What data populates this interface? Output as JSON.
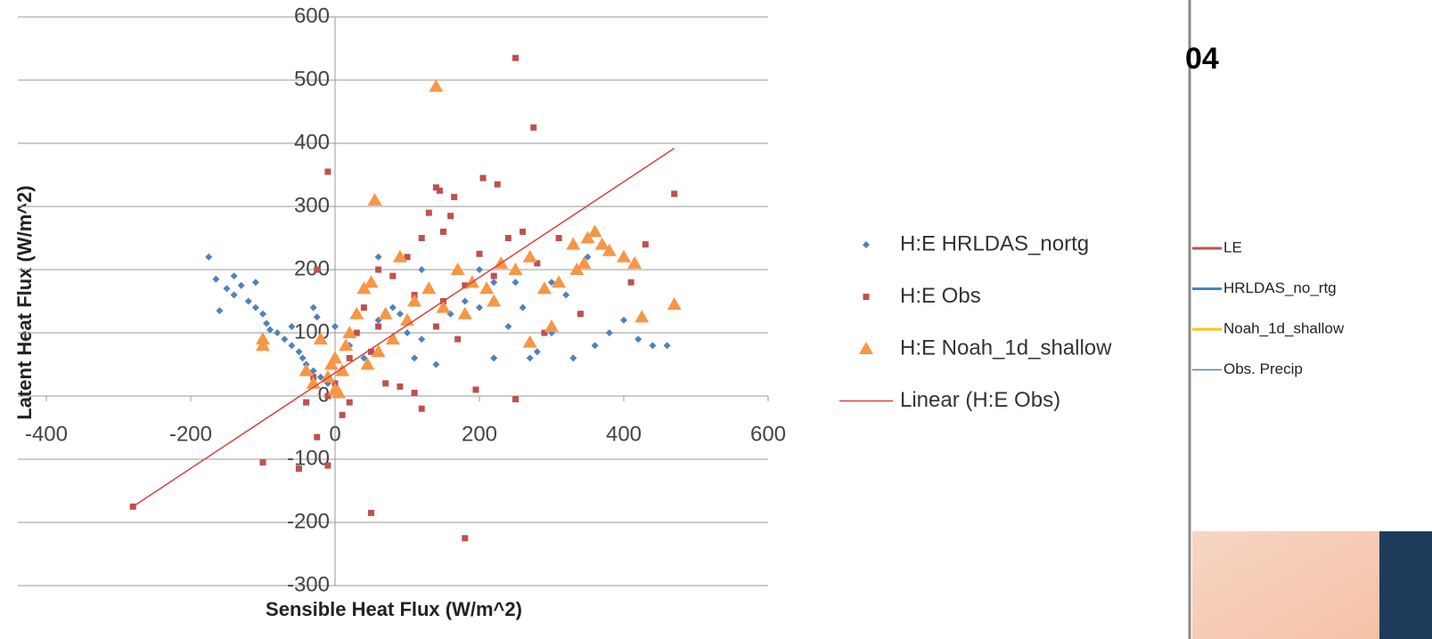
{
  "chart_data": {
    "type": "scatter",
    "xlabel": "Sensible Heat Flux (W/m^2)",
    "ylabel": "Latent Heat Flux (W/m^2)",
    "xlim": [
      -400,
      600
    ],
    "xticks": [
      -400,
      -200,
      0,
      200,
      400,
      600
    ],
    "ylim": [
      -300,
      600
    ],
    "yticks": [
      -300,
      -200,
      -100,
      0,
      100,
      200,
      300,
      400,
      500,
      600
    ],
    "grid": true,
    "legend": "right",
    "series": [
      {
        "name": "H:E HRLDAS_nortg",
        "color": "#4f81bd",
        "marker": "diamond",
        "x": [
          -175,
          -165,
          -150,
          -140,
          -130,
          -120,
          -110,
          -100,
          -95,
          -90,
          -80,
          -70,
          -60,
          -50,
          -45,
          -40,
          -30,
          -20,
          -10,
          -25,
          -30,
          0,
          20,
          40,
          60,
          80,
          100,
          110,
          120,
          140,
          160,
          180,
          200,
          220,
          240,
          260,
          280,
          300,
          320,
          340,
          360,
          380,
          400,
          420,
          440,
          460,
          300,
          250,
          200,
          120,
          90,
          60,
          -60,
          -160,
          -140,
          -110,
          350,
          330,
          270,
          220
        ],
        "values": [
          220,
          185,
          170,
          160,
          175,
          150,
          140,
          130,
          115,
          105,
          100,
          90,
          80,
          70,
          60,
          50,
          40,
          30,
          20,
          125,
          140,
          110,
          80,
          60,
          120,
          140,
          100,
          60,
          90,
          50,
          130,
          150,
          140,
          60,
          110,
          140,
          70,
          100,
          160,
          130,
          80,
          100,
          120,
          90,
          80,
          80,
          180,
          180,
          200,
          200,
          130,
          220,
          110,
          135,
          190,
          180,
          220,
          60,
          60,
          180
        ]
      },
      {
        "name": "H:E Obs",
        "color": "#c0504d",
        "marker": "square",
        "x": [
          -280,
          -100,
          -50,
          -10,
          -25,
          -10,
          -25,
          10,
          50,
          180,
          250,
          275,
          470,
          140,
          145,
          165,
          205,
          225,
          130,
          160,
          150,
          120,
          100,
          200,
          240,
          260,
          310,
          280,
          220,
          180,
          150,
          110,
          80,
          60,
          40,
          30,
          20,
          10,
          0,
          -10,
          20,
          50,
          70,
          90,
          110,
          120,
          195,
          250,
          340,
          410,
          430,
          -30,
          -40,
          60,
          170,
          290,
          140
        ],
        "values": [
          -175,
          -105,
          -115,
          -110,
          -65,
          355,
          200,
          -30,
          -185,
          -225,
          535,
          425,
          320,
          330,
          325,
          315,
          345,
          335,
          290,
          285,
          260,
          250,
          220,
          225,
          250,
          260,
          250,
          210,
          190,
          175,
          150,
          160,
          190,
          200,
          140,
          100,
          60,
          40,
          20,
          0,
          -10,
          70,
          20,
          15,
          5,
          -20,
          10,
          -5,
          130,
          180,
          240,
          30,
          -10,
          110,
          90,
          100,
          110
        ]
      },
      {
        "name": "H:E Noah_1d_shallow",
        "color": "#f79646",
        "marker": "triangle",
        "x": [
          140,
          55,
          -100,
          -100,
          -20,
          0,
          10,
          0,
          -30,
          -40,
          20,
          30,
          40,
          50,
          70,
          90,
          110,
          130,
          150,
          170,
          190,
          210,
          230,
          250,
          270,
          290,
          310,
          330,
          350,
          360,
          370,
          380,
          400,
          415,
          425,
          470,
          300,
          270,
          220,
          180,
          100,
          80,
          60,
          -10,
          5,
          -5,
          15,
          45,
          335,
          345
        ],
        "values": [
          490,
          310,
          80,
          90,
          90,
          60,
          40,
          10,
          20,
          40,
          100,
          130,
          170,
          180,
          130,
          220,
          150,
          170,
          140,
          200,
          180,
          170,
          210,
          200,
          220,
          170,
          180,
          240,
          250,
          260,
          240,
          230,
          220,
          210,
          125,
          145,
          110,
          85,
          150,
          130,
          120,
          90,
          70,
          30,
          5,
          50,
          80,
          50,
          200,
          210
        ]
      },
      {
        "name": "Linear (H:E Obs)",
        "color": "#e0403a",
        "marker": "line",
        "x": [
          -280,
          470
        ],
        "values": [
          -175,
          392
        ]
      }
    ]
  },
  "side_panel": {
    "heading": "04",
    "legend": [
      {
        "name": "LE",
        "color": "#c0504d"
      },
      {
        "name": "HRLDAS_no_rtg",
        "color": "#4f81bd"
      },
      {
        "name": "Noah_1d_shallow",
        "color": "#ffc000"
      },
      {
        "name": "Obs. Precip",
        "color": "#4f81bd"
      }
    ]
  }
}
